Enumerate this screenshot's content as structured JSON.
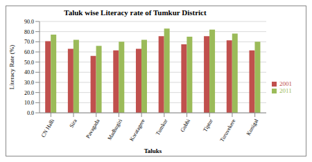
{
  "chart_data": {
    "type": "bar",
    "title": "Taluk wise Literacy rate of Tumkur District",
    "x_label": "Taluks",
    "y_label": "Literacy Rate (%)",
    "categories": [
      "CN Halli",
      "Sira",
      "Pavagada",
      "Madhugiri",
      "Koratagere",
      "Tumkur",
      "Gubbi",
      "Tiptur",
      "Turuvekere",
      "Kunigal"
    ],
    "series": [
      {
        "name": "2001",
        "color": "#c0504d",
        "values": [
          70.5,
          63,
          56,
          61.5,
          63,
          75.5,
          67.5,
          75.5,
          71.5,
          61.5
        ]
      },
      {
        "name": "2011",
        "color": "#9bbb59",
        "values": [
          77,
          72,
          66,
          70,
          72,
          83,
          75,
          82,
          78,
          70
        ]
      }
    ],
    "ylim": [
      0,
      90
    ],
    "yticks": [
      {
        "value": 0,
        "label": "0.0"
      },
      {
        "value": 10,
        "label": "10.0"
      },
      {
        "value": 20,
        "label": "20.0"
      },
      {
        "value": 30,
        "label": "30.0"
      },
      {
        "value": 40,
        "label": "40.0"
      },
      {
        "value": 50,
        "label": "50.0"
      },
      {
        "value": 60,
        "label": "60.0"
      },
      {
        "value": 70,
        "label": "70.0"
      },
      {
        "value": 80,
        "label": "80.0"
      },
      {
        "value": 90,
        "label": "90.0"
      }
    ],
    "grid": true,
    "legend": "right"
  }
}
